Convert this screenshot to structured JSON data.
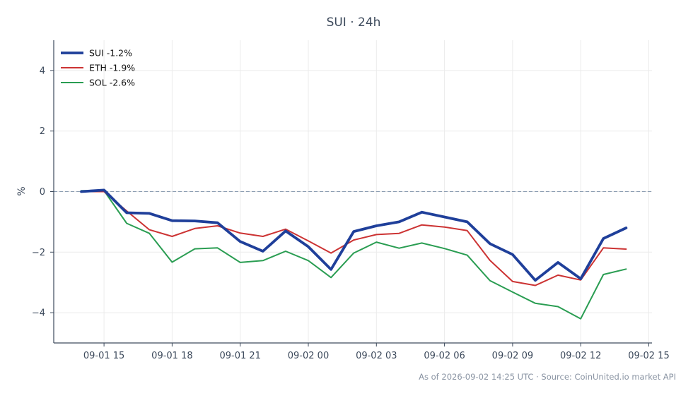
{
  "chart_data": {
    "type": "line",
    "title": "SUI · 24h",
    "ylabel": "%",
    "xlabel": "",
    "ylim": [
      -5,
      5
    ],
    "yticks": [
      4,
      2,
      0,
      -2,
      -4
    ],
    "xticks": [
      "09-01 15",
      "09-01 18",
      "09-01 21",
      "09-02 00",
      "09-02 03",
      "09-02 06",
      "09-02 09",
      "09-02 12",
      "09-02 15"
    ],
    "grid": true,
    "legend_position": "top-left",
    "zero_line": true,
    "x": [
      "09-01 14:00",
      "09-01 15:00",
      "09-01 16:00",
      "09-01 17:00",
      "09-01 18:00",
      "09-01 19:00",
      "09-01 20:00",
      "09-01 21:00",
      "09-01 22:00",
      "09-01 23:00",
      "09-02 00:00",
      "09-02 01:00",
      "09-02 02:00",
      "09-02 03:00",
      "09-02 04:00",
      "09-02 05:00",
      "09-02 06:00",
      "09-02 07:00",
      "09-02 08:00",
      "09-02 09:00",
      "09-02 10:00",
      "09-02 11:00",
      "09-02 12:00",
      "09-02 13:00",
      "09-02 14:00"
    ],
    "series": [
      {
        "name": "SUI -1.2%",
        "color": "#1f3f9a",
        "width": 3.8,
        "values": [
          0.0,
          0.05,
          -0.7,
          -0.72,
          -0.96,
          -0.97,
          -1.03,
          -1.65,
          -1.97,
          -1.3,
          -1.82,
          -2.57,
          -1.32,
          -1.13,
          -1.0,
          -0.68,
          -0.84,
          -1.0,
          -1.72,
          -2.08,
          -2.93,
          -2.34,
          -2.88,
          -1.55,
          -1.2
        ]
      },
      {
        "name": "ETH -1.9%",
        "color": "#cc3333",
        "width": 2,
        "values": [
          0.0,
          0.0,
          -0.64,
          -1.26,
          -1.48,
          -1.22,
          -1.13,
          -1.37,
          -1.48,
          -1.24,
          -1.63,
          -2.03,
          -1.6,
          -1.42,
          -1.38,
          -1.1,
          -1.17,
          -1.29,
          -2.27,
          -2.97,
          -3.1,
          -2.76,
          -2.92,
          -1.86,
          -1.9
        ]
      },
      {
        "name": "SOL -2.6%",
        "color": "#2a9d52",
        "width": 2,
        "values": [
          0.03,
          0.03,
          -1.05,
          -1.38,
          -2.33,
          -1.89,
          -1.86,
          -2.34,
          -2.28,
          -1.97,
          -2.28,
          -2.84,
          -2.03,
          -1.67,
          -1.87,
          -1.7,
          -1.88,
          -2.1,
          -2.94,
          -3.32,
          -3.69,
          -3.8,
          -4.2,
          -2.74,
          -2.56
        ]
      }
    ]
  },
  "footer": "As of 2026-09-02 14:25 UTC · Source: CoinUnited.io market API"
}
